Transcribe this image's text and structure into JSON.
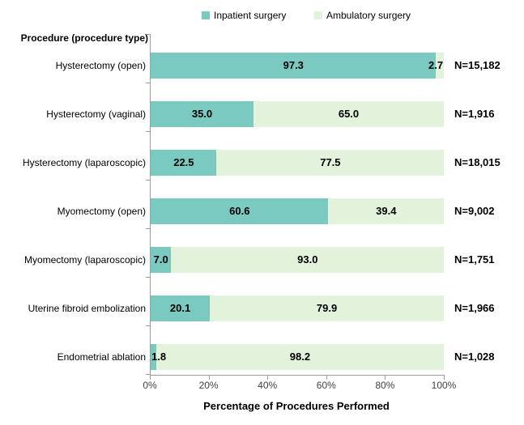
{
  "legend": {
    "items": [
      {
        "label": "Inpatient surgery",
        "color": "#7BCAC2"
      },
      {
        "label": "Ambulatory surgery",
        "color": "#E2F2DB"
      }
    ]
  },
  "y_axis": {
    "title": "Procedure (procedure type)"
  },
  "x_axis": {
    "title": "Percentage of Procedures Performed",
    "ticks": [
      "0%",
      "20%",
      "40%",
      "60%",
      "80%",
      "100%"
    ]
  },
  "colors": {
    "axis": "#9c9c9c",
    "inpatient": "#7BCAC2",
    "ambulatory": "#E2F2DB"
  },
  "chart_data": {
    "type": "bar",
    "orientation": "horizontal",
    "stacked": true,
    "title": "",
    "xlabel": "Percentage of Procedures Performed",
    "ylabel": "Procedure (procedure type)",
    "xlim": [
      0,
      100
    ],
    "x_tick_labels": [
      "0%",
      "20%",
      "40%",
      "60%",
      "80%",
      "100%"
    ],
    "legend_position": "top",
    "grid": false,
    "categories": [
      "Hysterectomy (open)",
      "Hysterectomy (vaginal)",
      "Hysterectomy (laparoscopic)",
      "Myomectomy (open)",
      "Myomectomy (laparoscopic)",
      "Uterine fibroid embolization",
      "Endometrial ablation"
    ],
    "series": [
      {
        "name": "Inpatient surgery",
        "color": "#7BCAC2",
        "values": [
          97.3,
          35.0,
          22.5,
          60.6,
          7.0,
          20.1,
          1.8
        ],
        "labels": [
          "97.3",
          "35.0",
          "22.5",
          "60.6",
          "7.0",
          "20.1",
          "1.8"
        ]
      },
      {
        "name": "Ambulatory surgery",
        "color": "#E2F2DB",
        "values": [
          2.7,
          65.0,
          77.5,
          39.4,
          93.0,
          79.9,
          98.2
        ],
        "labels": [
          "2.7",
          "65.0",
          "77.5",
          "39.4",
          "93.0",
          "79.9",
          "98.2"
        ]
      }
    ],
    "n_labels": [
      "N=15,182",
      "N=1,916",
      "N=18,015",
      "N=9,002",
      "N=1,751",
      "N=1,966",
      "N=1,028"
    ]
  }
}
